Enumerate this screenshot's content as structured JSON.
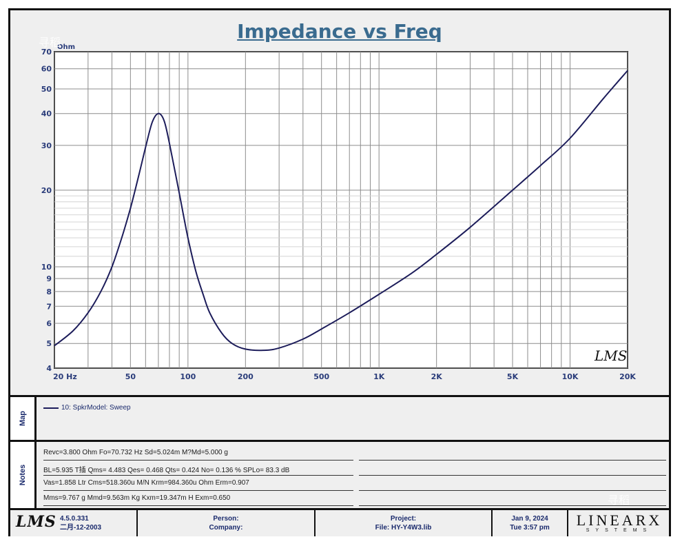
{
  "chart_data": {
    "type": "line",
    "title": "Impedance vs Freq",
    "ylabel": "Ohm",
    "x_scale": "log",
    "y_scale": "log",
    "xlim": [
      20,
      20000
    ],
    "ylim": [
      4,
      70
    ],
    "grid": true,
    "x_ticks": [
      "20 Hz",
      "50",
      "100",
      "200",
      "500",
      "1K",
      "2K",
      "5K",
      "10K",
      "20K"
    ],
    "x_tick_values": [
      20,
      50,
      100,
      200,
      500,
      1000,
      2000,
      5000,
      10000,
      20000
    ],
    "y_ticks": [
      "4",
      "5",
      "6",
      "7",
      "8",
      "9",
      "10",
      "20",
      "30",
      "40",
      "50",
      "60",
      "70"
    ],
    "y_tick_values": [
      4,
      5,
      6,
      7,
      8,
      9,
      10,
      20,
      30,
      40,
      50,
      60,
      70
    ],
    "series": [
      {
        "name": "10: SpkrModel: Sweep",
        "color": "#1c1c5a",
        "points": [
          [
            20,
            4.9
          ],
          [
            25,
            5.6
          ],
          [
            30,
            6.6
          ],
          [
            35,
            8.0
          ],
          [
            40,
            10.0
          ],
          [
            45,
            13.0
          ],
          [
            50,
            17.0
          ],
          [
            55,
            22.5
          ],
          [
            60,
            29.5
          ],
          [
            65,
            37.0
          ],
          [
            70,
            40.0
          ],
          [
            75,
            37.5
          ],
          [
            80,
            30.5
          ],
          [
            90,
            19.5
          ],
          [
            100,
            13.0
          ],
          [
            110,
            9.6
          ],
          [
            120,
            7.8
          ],
          [
            130,
            6.6
          ],
          [
            150,
            5.5
          ],
          [
            170,
            5.0
          ],
          [
            200,
            4.75
          ],
          [
            250,
            4.7
          ],
          [
            300,
            4.8
          ],
          [
            400,
            5.2
          ],
          [
            500,
            5.7
          ],
          [
            700,
            6.6
          ],
          [
            1000,
            7.8
          ],
          [
            1500,
            9.5
          ],
          [
            2000,
            11.2
          ],
          [
            3000,
            14.3
          ],
          [
            5000,
            20.0
          ],
          [
            7000,
            25.0
          ],
          [
            10000,
            32.0
          ],
          [
            15000,
            46.0
          ],
          [
            20000,
            59.0
          ]
        ]
      }
    ],
    "watermark_text": "LMS"
  },
  "map": {
    "label": "Map",
    "legend": "10: SpkrModel: Sweep",
    "line_color": "#1c1c5a"
  },
  "notes": {
    "label": "Notes",
    "rows": [
      "Revc=3.800 Ohm  Fo=70.732 Hz  Sd=5.024m M?Md=5.000 g",
      "BL=5.935 T插  Qms= 4.483  Qes= 0.468  Qts= 0.424  No= 0.136 %  SPLo= 83.3 dB",
      "Vas=1.858 Ltr  Cms=518.360u M/N  Krm=984.360u Ohm  Erm=0.907",
      "Mms=9.767 g  Mmd=9.563m Kg  Kxm=19.347m H  Exm=0.650"
    ]
  },
  "footer": {
    "logo": "LMS",
    "version": "4.5.0.331",
    "version_date": "二月-12-2003",
    "person_label": "Person:",
    "company_label": "Company:",
    "project_label": "Project:",
    "file_label": "File: HY-Y4W3.lib",
    "date": "Jan  9, 2024",
    "time": "Tue  3:57 pm",
    "brand_main": "LINEARX",
    "brand_sub": "SYSTEMS"
  },
  "watermark": "寻稻"
}
